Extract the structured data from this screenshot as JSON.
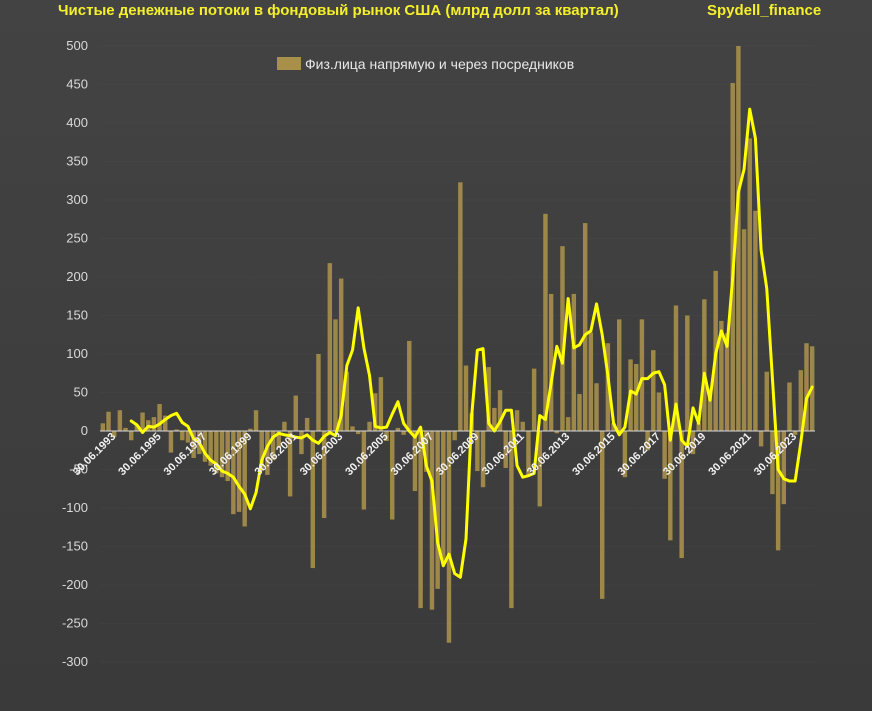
{
  "title": "Чистые денежные потоки в фондовый рынок США (млрд долл за квартал)",
  "source": "Spydell_finance",
  "colors": {
    "background": "#3f3f3f",
    "bar": "#a8904a",
    "line": "#ffff00",
    "title": "#f5f02a",
    "grid": "#5a5a5a"
  },
  "chart_data": {
    "type": "bar",
    "title": "Чистые денежные потоки в фондовый рынок США (млрд долл за квартал)",
    "xlabel": "",
    "ylabel": "",
    "ylim": [
      -300,
      500
    ],
    "yticks": [
      -300,
      -250,
      -200,
      -150,
      -100,
      -50,
      0,
      50,
      100,
      150,
      200,
      250,
      300,
      350,
      400,
      450,
      500
    ],
    "grid": false,
    "legend_placement": "top-center",
    "x_tick_labels": [
      "30.06.1993",
      "30.06.1995",
      "30.06.1997",
      "30.06.1999",
      "30.06.2001",
      "30.06.2003",
      "30.06.2005",
      "30.06.2007",
      "30.06.2009",
      "30.06.2011",
      "30.06.2013",
      "30.06.2015",
      "30.06.2017",
      "30.06.2019",
      "30.06.2021",
      "30.06.2023"
    ],
    "series": [
      {
        "name": "Физ.лица напрямую и через посредников",
        "type": "bar",
        "values": [
          10,
          25,
          -8,
          27,
          4,
          -12,
          8,
          24,
          14,
          18,
          35,
          20,
          -28,
          2,
          -12,
          -15,
          -35,
          -30,
          -40,
          -45,
          -55,
          -60,
          -65,
          -108,
          -105,
          -124,
          3,
          27,
          -52,
          -57,
          -38,
          -22,
          12,
          -85,
          46,
          -30,
          17,
          -178,
          100,
          -113,
          218,
          145,
          198,
          77,
          6,
          -4,
          -102,
          12,
          49,
          70,
          -13,
          -115,
          4,
          -5,
          117,
          -78,
          -230,
          -53,
          -232,
          -205,
          -170,
          -275,
          -12,
          323,
          85,
          23,
          -52,
          -73,
          83,
          30,
          53,
          -48,
          -230,
          27,
          12,
          -58,
          81,
          -98,
          282,
          178,
          -3,
          240,
          18,
          178,
          48,
          270,
          128,
          62,
          -218,
          114,
          10,
          145,
          -60,
          93,
          87,
          145,
          -25,
          105,
          50,
          -62,
          -142,
          163,
          -165,
          150,
          -30,
          10,
          171,
          55,
          208,
          143,
          127,
          452,
          500,
          262,
          380,
          286,
          -20,
          77,
          -82,
          -155,
          -95,
          63,
          -5,
          79,
          114,
          110
        ]
      },
      {
        "name": "",
        "type": "line",
        "x_offset": 5,
        "values": [
          13,
          8,
          -2,
          6,
          5,
          9,
          15,
          20,
          23,
          11,
          6,
          -10,
          -15,
          -29,
          -38,
          -43,
          -52,
          -55,
          -60,
          -72,
          -82,
          -101,
          -80,
          -38,
          -20,
          -8,
          -3,
          -5,
          -6,
          -8,
          -9,
          -5,
          -12,
          -16,
          -7,
          -2,
          -6,
          20,
          85,
          105,
          160,
          108,
          72,
          6,
          4,
          5,
          22,
          38,
          10,
          0,
          -8,
          5,
          -45,
          -65,
          -145,
          -175,
          -160,
          -185,
          -190,
          -140,
          20,
          105,
          107,
          10,
          0,
          12,
          27,
          27,
          -45,
          -60,
          -58,
          -55,
          20,
          15,
          62,
          110,
          88,
          172,
          108,
          112,
          125,
          130,
          165,
          125,
          72,
          10,
          -5,
          5,
          52,
          48,
          68,
          68,
          75,
          77,
          60,
          -12,
          35,
          -12,
          -20,
          30,
          10,
          75,
          40,
          100,
          130,
          110,
          200,
          310,
          340,
          418,
          380,
          235,
          185,
          68,
          -50,
          -62,
          -65,
          -65,
          -15,
          42,
          57
        ]
      }
    ]
  }
}
